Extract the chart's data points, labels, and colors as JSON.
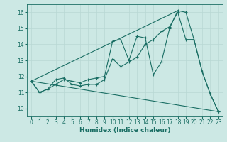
{
  "title": "",
  "xlabel": "Humidex (Indice chaleur)",
  "xlim": [
    -0.5,
    23.5
  ],
  "ylim": [
    9.5,
    16.5
  ],
  "yticks": [
    10,
    11,
    12,
    13,
    14,
    15,
    16
  ],
  "xticks": [
    0,
    1,
    2,
    3,
    4,
    5,
    6,
    7,
    8,
    9,
    10,
    11,
    12,
    13,
    14,
    15,
    16,
    17,
    18,
    19,
    20,
    21,
    22,
    23
  ],
  "bg_color": "#cce8e4",
  "line_color": "#1a6e64",
  "grid_color": "#b8d8d4",
  "line1_x": [
    0,
    1,
    2,
    3,
    4,
    5,
    6,
    7,
    8,
    9,
    10,
    11,
    12,
    13,
    14,
    15,
    16,
    17,
    18,
    19,
    20,
    21,
    22,
    23
  ],
  "line1_y": [
    11.7,
    11.0,
    11.2,
    11.5,
    11.8,
    11.7,
    11.6,
    11.8,
    11.9,
    12.0,
    14.2,
    14.3,
    13.0,
    14.5,
    14.4,
    12.1,
    12.9,
    15.0,
    16.1,
    16.0,
    14.3,
    12.3,
    10.9,
    9.8
  ],
  "line2_x": [
    0,
    1,
    2,
    3,
    4,
    5,
    6,
    7,
    8,
    9,
    10,
    11,
    12,
    13,
    14,
    15,
    16,
    17,
    18,
    19,
    20,
    21,
    22,
    23
  ],
  "line2_y": [
    11.7,
    11.0,
    11.2,
    11.8,
    11.9,
    11.5,
    11.4,
    11.5,
    11.5,
    11.8,
    13.1,
    12.6,
    12.9,
    13.2,
    14.0,
    14.3,
    14.8,
    15.1,
    16.0,
    14.3,
    14.3,
    12.3,
    10.9,
    9.8
  ],
  "line3_x": [
    0,
    23
  ],
  "line3_y": [
    11.7,
    9.8
  ],
  "line4_x": [
    0,
    18
  ],
  "line4_y": [
    11.7,
    16.1
  ]
}
